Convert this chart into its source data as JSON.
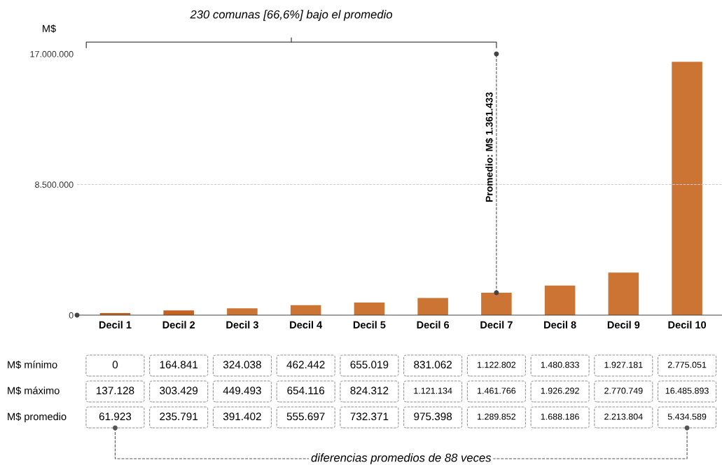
{
  "chart_data": {
    "type": "bar",
    "ylabel": "M$",
    "categories": [
      "Decil 1",
      "Decil 2",
      "Decil 3",
      "Decil 4",
      "Decil 5",
      "Decil 6",
      "Decil 7",
      "Decil 8",
      "Decil 9",
      "Decil 10"
    ],
    "series": [
      {
        "values": [
          137128,
          303429,
          449493,
          654116,
          824312,
          1121134,
          1461766,
          1926292,
          2770749,
          16485893
        ],
        "value_labels": [
          "137.128",
          "303.429",
          "449.493",
          "654.116",
          "824.312",
          "1.121.134",
          "1.461.766",
          "1.926.292",
          "2.770.749",
          "16.485.893"
        ],
        "colors": [
          "#c8601f",
          "#c8601f",
          "#cc7433",
          "#cc7433",
          "#cc7433",
          "#cc7433",
          "#cc7433",
          "#cc7433",
          "#cc7433",
          "#cc7433"
        ]
      }
    ],
    "ylim": [
      0,
      17000000
    ],
    "yticks": [
      {
        "value": 0,
        "label": "0"
      },
      {
        "value": 8500000,
        "label": "8.500.000"
      },
      {
        "value": 17000000,
        "label": "17.000.000"
      }
    ],
    "ref_lines": [
      {
        "axis": "y",
        "value": 8500000,
        "line_style": "dashed",
        "color": "#cccccc"
      },
      {
        "axis": "x",
        "value": "Decil 7",
        "label": "Promedio: M$ 1.361.433",
        "line_style": "dashed",
        "color": "#555555"
      }
    ],
    "annotations": [
      "230 comunas [66,6%] bajo el promedio",
      "diferencias promedios de 88 veces",
      "M$ mínimo",
      "0",
      "164.841",
      "324.038",
      "462.442",
      "655.019",
      "831.062",
      "1.122.802",
      "1.480.833",
      "1.927.181",
      "2.775.051",
      "M$ máximo",
      "M$ promedio",
      "61.923",
      "235.791",
      "391.402",
      "555.697",
      "732.371",
      "975.398",
      "1.289.852",
      "1.688.186",
      "2.213.804",
      "5.434.589"
    ]
  }
}
